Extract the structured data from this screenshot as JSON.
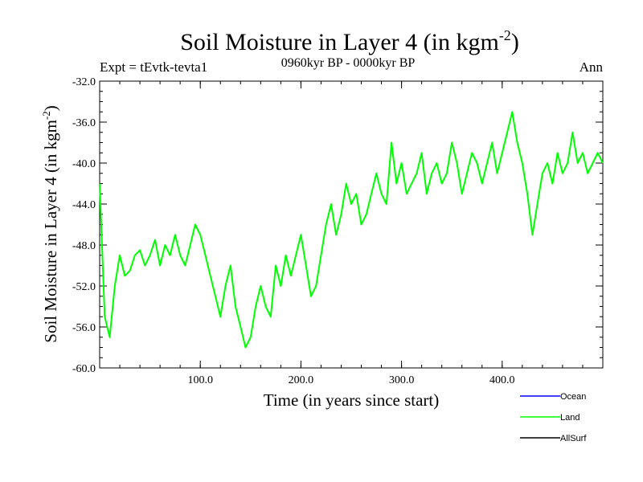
{
  "chart_data": {
    "type": "line",
    "title": "Soil Moisture in Layer 4 (in kgm",
    "title_sup": "-2",
    "title_close": ")",
    "subtitle": "0960kyr BP - 0000kyr BP",
    "left_label": "Expt = tEvtk-tevta1",
    "right_label": "Ann",
    "xlabel": "Time (in years since start)",
    "ylabel": "Soil Moisture in Layer 4 (in kgm",
    "ylabel_sup": "-2",
    "ylabel_close": ")",
    "xlim": [
      0,
      500
    ],
    "ylim": [
      -60,
      -32
    ],
    "xticks": [
      100,
      200,
      300,
      400
    ],
    "xtick_labels": [
      "100.0",
      "200.0",
      "300.0",
      "400.0"
    ],
    "yticks": [
      -32,
      -36,
      -40,
      -44,
      -48,
      -52,
      -56,
      -60
    ],
    "ytick_labels": [
      "-32.0",
      "-36.0",
      "-40.0",
      "-44.0",
      "-48.0",
      "-52.0",
      "-56.0",
      "-60.0"
    ],
    "legend": [
      {
        "name": "Ocean",
        "color": "#0000ff"
      },
      {
        "name": "Land",
        "color": "#00ff00"
      },
      {
        "name": "AllSurf",
        "color": "#000000"
      }
    ],
    "series": [
      {
        "name": "Land",
        "color": "#00ff00",
        "x": [
          0,
          5,
          10,
          15,
          20,
          25,
          30,
          35,
          40,
          45,
          50,
          55,
          60,
          65,
          70,
          75,
          80,
          85,
          90,
          95,
          100,
          105,
          110,
          115,
          120,
          125,
          130,
          135,
          140,
          145,
          150,
          155,
          160,
          165,
          170,
          175,
          180,
          185,
          190,
          195,
          200,
          205,
          210,
          215,
          220,
          225,
          230,
          235,
          240,
          245,
          250,
          255,
          260,
          265,
          270,
          275,
          280,
          285,
          290,
          295,
          300,
          305,
          310,
          315,
          320,
          325,
          330,
          335,
          340,
          345,
          350,
          355,
          360,
          365,
          370,
          375,
          380,
          385,
          390,
          395,
          400,
          405,
          410,
          415,
          420,
          425,
          430,
          435,
          440,
          445,
          450,
          455,
          460,
          465,
          470,
          475,
          480,
          485,
          490,
          495,
          500
        ],
        "values": [
          -42,
          -55,
          -57,
          -52,
          -49,
          -51,
          -50.5,
          -49,
          -48.5,
          -50,
          -49,
          -47.5,
          -50,
          -48,
          -49,
          -47,
          -49,
          -50,
          -48,
          -46,
          -47,
          -49,
          -51,
          -53,
          -55,
          -52,
          -50,
          -54,
          -56,
          -58,
          -57,
          -54,
          -52,
          -54,
          -55,
          -50,
          -52,
          -49,
          -51,
          -49,
          -47,
          -50,
          -53,
          -52,
          -49,
          -46,
          -44,
          -47,
          -45,
          -42,
          -44,
          -43,
          -46,
          -45,
          -43,
          -41,
          -43,
          -44,
          -38,
          -42,
          -40,
          -43,
          -42,
          -41,
          -39,
          -43,
          -41,
          -40,
          -42,
          -41,
          -38,
          -40,
          -43,
          -41,
          -39,
          -40,
          -42,
          -40,
          -38,
          -41,
          -39,
          -37,
          -35,
          -38,
          -40,
          -43,
          -47,
          -44,
          -41,
          -40,
          -42,
          -39,
          -41,
          -40,
          -37,
          -40,
          -39,
          -41,
          -40,
          -39,
          -40
        ]
      }
    ]
  }
}
